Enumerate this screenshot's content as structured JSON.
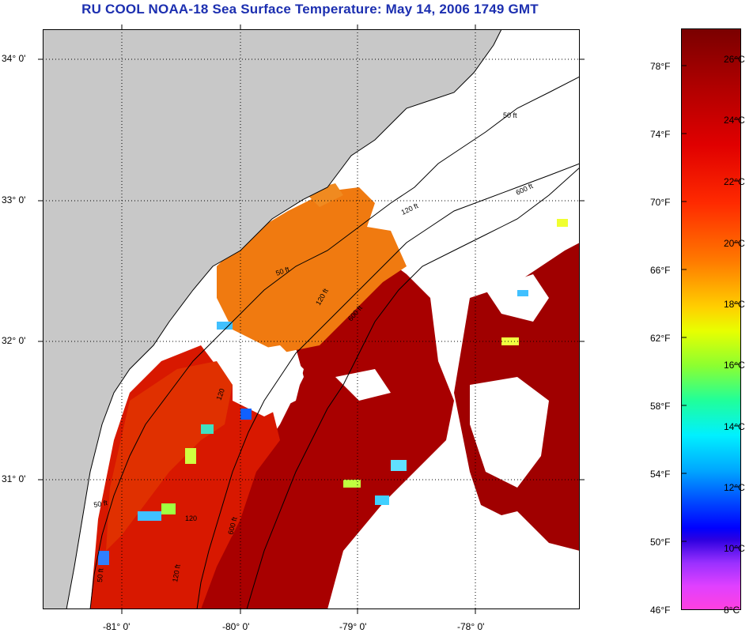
{
  "title": "RU COOL  NOAA-18  Sea Surface Temperature:  May 14, 2006 1749 GMT",
  "lat_labels": [
    "34° 0'",
    "33° 0'",
    "32° 0'",
    "31° 0'"
  ],
  "lon_labels": [
    "-81° 0'",
    "-80° 0'",
    "-79° 0'",
    "-78° 0'"
  ],
  "contour_labels": [
    "50 ft",
    "120 ft",
    "600 ft",
    "50 ft",
    "120 ft",
    "600 ft",
    "120",
    "50 ft",
    "120",
    "50 ft",
    "120 ft",
    "600 ft"
  ],
  "colorbar": {
    "fahrenheit": [
      "78°F",
      "74°F",
      "70°F",
      "66°F",
      "62°F",
      "58°F",
      "54°F",
      "50°F",
      "46°F"
    ],
    "celsius": [
      "26°C",
      "24°C",
      "22°C",
      "20°C",
      "18°C",
      "16°C",
      "14°C",
      "12°C",
      "10°C",
      "8°C"
    ]
  },
  "colors": {
    "land": "#c8c8c8",
    "title": "#1c2fb0",
    "cloud": "#ffffff",
    "sst_warm": "#a00000",
    "sst_mid": "#e02000",
    "sst_cool": "#f08000"
  }
}
